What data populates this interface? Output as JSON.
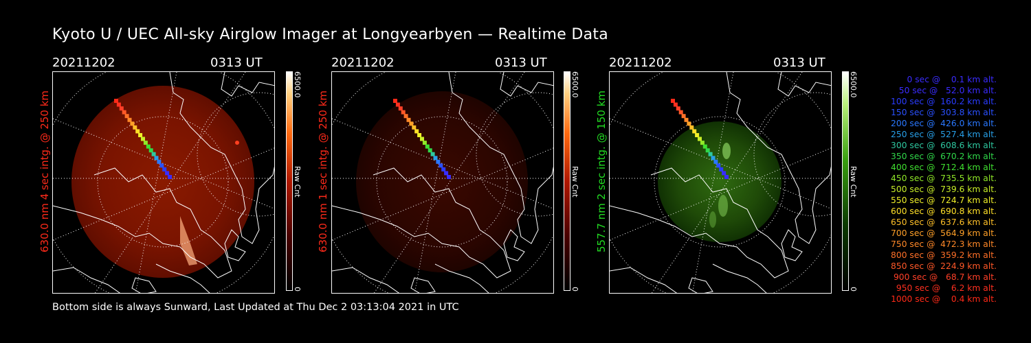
{
  "title": "Kyoto U / UEC All-sky Airglow Imager at Longyearbyen — Realtime Data",
  "footer": "Bottom side is always Sunward, Last Updated at Thu Dec  2 03:13:04 2021 in UTC",
  "panels": [
    {
      "date": "20211202",
      "time": "0313 UT",
      "side_label": "630.0 nm 4 sec intg. @ 250 km",
      "label_color": "#ff2a1a",
      "colorbar_max": "6500.0",
      "colorbar_unit": "Raw Cnt",
      "colorbar_min": "0",
      "colormap": "red",
      "brightness": "bright"
    },
    {
      "date": "20211202",
      "time": "0313 UT",
      "side_label": "630.0 nm 1 sec intg. @ 250 km",
      "label_color": "#ff2a1a",
      "colorbar_max": "6500.0",
      "colorbar_unit": "Raw Cnt",
      "colorbar_min": "0",
      "colormap": "red",
      "brightness": "dim"
    },
    {
      "date": "20211202",
      "time": "0313 UT",
      "side_label": "557.7 nm 2 sec intg. @ 150 km",
      "label_color": "#22dd22",
      "colorbar_max": "6500.0",
      "colorbar_unit": "Raw Cnt",
      "colorbar_min": "0",
      "colormap": "green",
      "brightness": "medium"
    }
  ],
  "legend": [
    {
      "text": "   0 sec @    0.1 km alt.",
      "color": "#3a2cff"
    },
    {
      "text": "  50 sec @   52.0 km alt.",
      "color": "#3a2cff"
    },
    {
      "text": " 100 sec @  160.2 km alt.",
      "color": "#2a3cff"
    },
    {
      "text": " 150 sec @  303.8 km alt.",
      "color": "#2a50ff"
    },
    {
      "text": " 200 sec @  426.0 km alt.",
      "color": "#2a78ff"
    },
    {
      "text": " 250 sec @  527.4 km alt.",
      "color": "#28a0e8"
    },
    {
      "text": " 300 sec @  608.6 km alt.",
      "color": "#2ec8a0"
    },
    {
      "text": " 350 sec @  670.2 km alt.",
      "color": "#30d84a"
    },
    {
      "text": " 400 sec @  712.4 km alt.",
      "color": "#40e030"
    },
    {
      "text": " 450 sec @  735.5 km alt.",
      "color": "#90e828"
    },
    {
      "text": " 500 sec @  739.6 km alt.",
      "color": "#c8ee28"
    },
    {
      "text": " 550 sec @  724.7 km alt.",
      "color": "#f0f028"
    },
    {
      "text": " 600 sec @  690.8 km alt.",
      "color": "#ffe028"
    },
    {
      "text": " 650 sec @  637.6 km alt.",
      "color": "#ffc028"
    },
    {
      "text": " 700 sec @  564.9 km alt.",
      "color": "#ffa028"
    },
    {
      "text": " 750 sec @  472.3 km alt.",
      "color": "#ff8828"
    },
    {
      "text": " 800 sec @  359.2 km alt.",
      "color": "#ff7028"
    },
    {
      "text": " 850 sec @  224.9 km alt.",
      "color": "#ff5828"
    },
    {
      "text": " 900 sec @   68.7 km alt.",
      "color": "#ff4028"
    },
    {
      "text": " 950 sec @    6.2 km alt.",
      "color": "#ff3020"
    },
    {
      "text": "1000 sec @    0.4 km alt.",
      "color": "#ff2a18"
    }
  ]
}
